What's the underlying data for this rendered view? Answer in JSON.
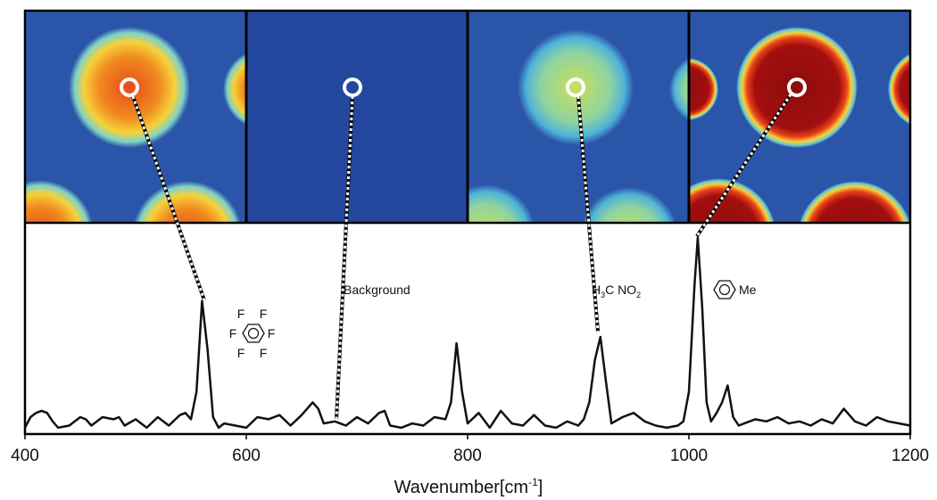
{
  "chart_data": {
    "type": "line",
    "x": [
      400,
      405,
      410,
      415,
      420,
      425,
      430,
      440,
      450,
      455,
      460,
      470,
      480,
      485,
      490,
      500,
      510,
      520,
      530,
      540,
      545,
      550,
      555,
      560,
      565,
      570,
      575,
      580,
      590,
      600,
      610,
      620,
      630,
      640,
      650,
      655,
      660,
      665,
      670,
      680,
      690,
      700,
      710,
      720,
      725,
      730,
      740,
      750,
      760,
      770,
      780,
      785,
      790,
      795,
      800,
      810,
      820,
      830,
      840,
      850,
      860,
      870,
      880,
      890,
      900,
      905,
      910,
      915,
      920,
      925,
      930,
      940,
      950,
      960,
      970,
      980,
      990,
      995,
      1000,
      1005,
      1008,
      1012,
      1016,
      1020,
      1025,
      1030,
      1035,
      1040,
      1045,
      1050,
      1060,
      1070,
      1080,
      1090,
      1100,
      1110,
      1120,
      1130,
      1140,
      1150,
      1160,
      1170,
      1180,
      1190,
      1200
    ],
    "values": [
      3,
      8,
      10,
      11,
      10,
      6,
      3,
      4,
      8,
      7,
      4,
      8,
      7,
      8,
      4,
      7,
      3,
      8,
      4,
      9,
      10,
      7,
      20,
      63,
      40,
      8,
      3,
      5,
      4,
      3,
      8,
      7,
      9,
      4,
      9,
      12,
      15,
      12,
      5,
      6,
      4,
      8,
      5,
      10,
      11,
      4,
      3,
      5,
      4,
      8,
      7,
      15,
      43,
      20,
      5,
      10,
      3,
      11,
      5,
      4,
      9,
      4,
      3,
      6,
      4,
      7,
      15,
      35,
      46,
      25,
      5,
      8,
      10,
      6,
      4,
      3,
      4,
      6,
      20,
      70,
      93,
      60,
      15,
      6,
      10,
      15,
      23,
      8,
      4,
      5,
      7,
      6,
      8,
      5,
      6,
      4,
      7,
      5,
      12,
      6,
      4,
      8,
      6,
      5,
      4
    ],
    "color": "#111111",
    "xlim": [
      400,
      1200
    ],
    "ylim": [
      0,
      100
    ],
    "xticks": [
      400,
      600,
      800,
      1000,
      1200
    ],
    "xlabel": [
      "Wavenumber[cm",
      "-1",
      "]"
    ],
    "annotations": {
      "background": "Background",
      "nitromethane": [
        "H",
        "3",
        "C NO",
        "2"
      ],
      "toluene": "Me",
      "hexafluorobenzene": [
        "F",
        "F",
        "F",
        "F",
        "F",
        "F"
      ]
    }
  }
}
